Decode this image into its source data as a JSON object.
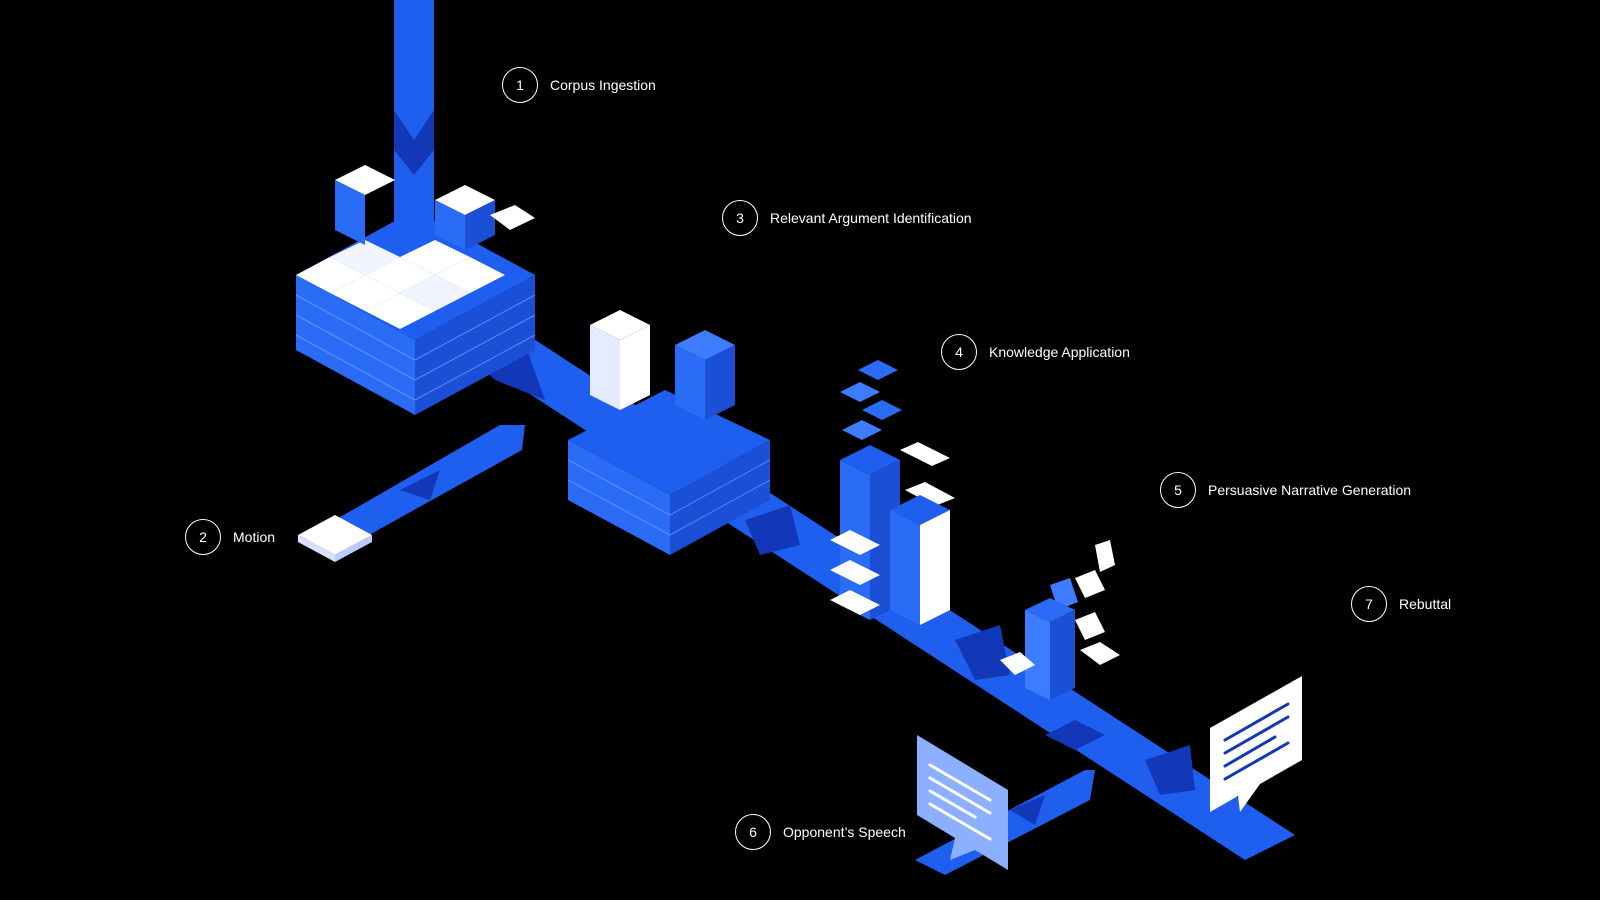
{
  "diagram": {
    "steps": [
      {
        "number": "1",
        "label": "Corpus Ingestion"
      },
      {
        "number": "2",
        "label": "Motion"
      },
      {
        "number": "3",
        "label": "Relevant Argument Identification"
      },
      {
        "number": "4",
        "label": "Knowledge Application"
      },
      {
        "number": "5",
        "label": "Persuasive Narrative Generation"
      },
      {
        "number": "6",
        "label": "Opponent’s Speech"
      },
      {
        "number": "7",
        "label": "Rebuttal"
      }
    ]
  },
  "colors": {
    "background": "#000000",
    "primary_blue": "#1f5ff0",
    "dark_blue": "#1238b8",
    "light_blue": "#8cb0ff",
    "paper_white": "#ffffff"
  }
}
